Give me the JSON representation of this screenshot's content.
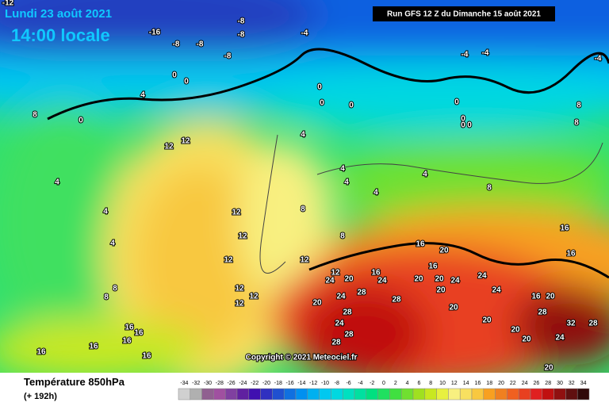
{
  "header": {
    "date": "Lundi 23 août 2021",
    "time": "14:00 locale",
    "run": "Run GFS 12 Z du Dimanche 15 août 2021"
  },
  "copyright": "Copyright © 2021 Meteociel.fr",
  "footer": {
    "title": "Température 850hPa",
    "subtitle": "(+ 192h)"
  },
  "scale": {
    "ticks": [
      -34,
      -32,
      -30,
      -28,
      -26,
      -24,
      -22,
      -20,
      -18,
      -16,
      -14,
      -12,
      -10,
      -8,
      -6,
      -4,
      -2,
      0,
      2,
      4,
      6,
      8,
      10,
      12,
      14,
      16,
      18,
      20,
      22,
      24,
      26,
      28,
      30,
      32,
      34
    ],
    "colors": [
      "#d0d0d0",
      "#b0b0b0",
      "#906090",
      "#a050a0",
      "#8040a0",
      "#6020a0",
      "#4010b0",
      "#3030c0",
      "#2050d0",
      "#1070e0",
      "#0090f0",
      "#00b0f0",
      "#00c8f0",
      "#00d8e0",
      "#00e0c0",
      "#00e0a0",
      "#00e080",
      "#20e060",
      "#40e040",
      "#70e030",
      "#a0e020",
      "#c8e820",
      "#e8f040",
      "#f8f080",
      "#f8e060",
      "#f8c840",
      "#f8a020",
      "#f08020",
      "#f06020",
      "#e84020",
      "#e02020",
      "#c01010",
      "#901010",
      "#601010",
      "#300808"
    ]
  },
  "map_labels": [
    -12,
    -16,
    -8,
    -8,
    -8,
    -8,
    -8,
    -4,
    -4,
    -4,
    -4,
    0,
    0,
    4,
    0,
    8,
    0,
    0,
    0,
    0,
    0,
    0,
    0,
    8,
    8,
    4,
    12,
    12,
    4,
    4,
    4,
    8,
    8,
    4,
    4,
    4,
    4,
    8,
    8,
    8,
    12,
    12,
    12,
    12,
    12,
    12,
    12,
    16,
    16,
    16,
    16,
    16,
    16,
    16,
    20,
    16,
    12,
    16,
    24,
    24,
    20,
    20,
    24,
    24,
    16,
    16,
    20,
    20,
    24,
    28,
    28,
    20,
    24,
    16,
    20,
    20,
    28,
    24,
    28,
    28,
    20,
    20,
    28,
    32,
    28,
    20,
    24,
    20
  ]
}
